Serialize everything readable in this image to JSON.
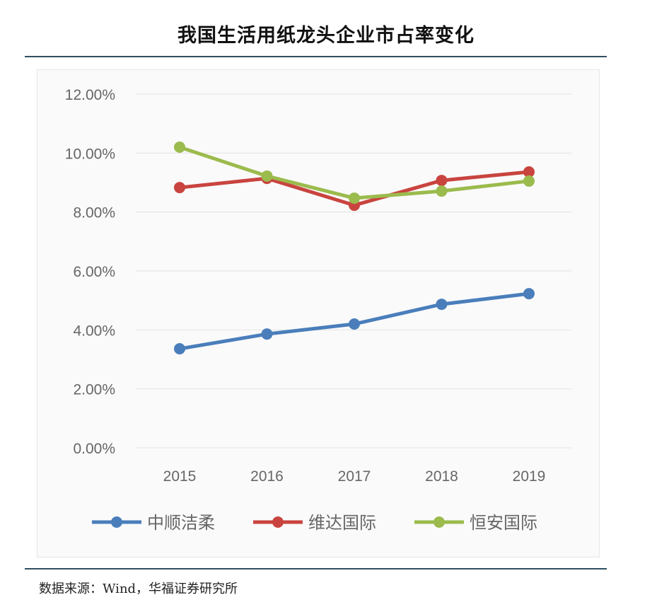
{
  "title": "我国生活用纸龙头企业市占率变化",
  "source": "数据来源：Wind，华福证券研究所",
  "chart_data": {
    "type": "line",
    "title": "我国生活用纸龙头企业市占率变化",
    "categories": [
      "2015",
      "2016",
      "2017",
      "2018",
      "2019"
    ],
    "y_ticks": [
      "0.00%",
      "2.00%",
      "4.00%",
      "6.00%",
      "8.00%",
      "10.00%",
      "12.00%"
    ],
    "ylim": [
      0,
      12
    ],
    "ylabel": "",
    "xlabel": "",
    "grid": true,
    "legend_position": "bottom",
    "series": [
      {
        "name": "中顺洁柔",
        "color": "#4a7ebb",
        "values": [
          3.36,
          3.86,
          4.2,
          4.87,
          5.23
        ]
      },
      {
        "name": "维达国际",
        "color": "#c9443f",
        "values": [
          8.83,
          9.14,
          8.23,
          9.07,
          9.36
        ]
      },
      {
        "name": "恒安国际",
        "color": "#9bbb4c",
        "values": [
          10.2,
          9.22,
          8.47,
          8.71,
          9.05
        ]
      }
    ]
  }
}
